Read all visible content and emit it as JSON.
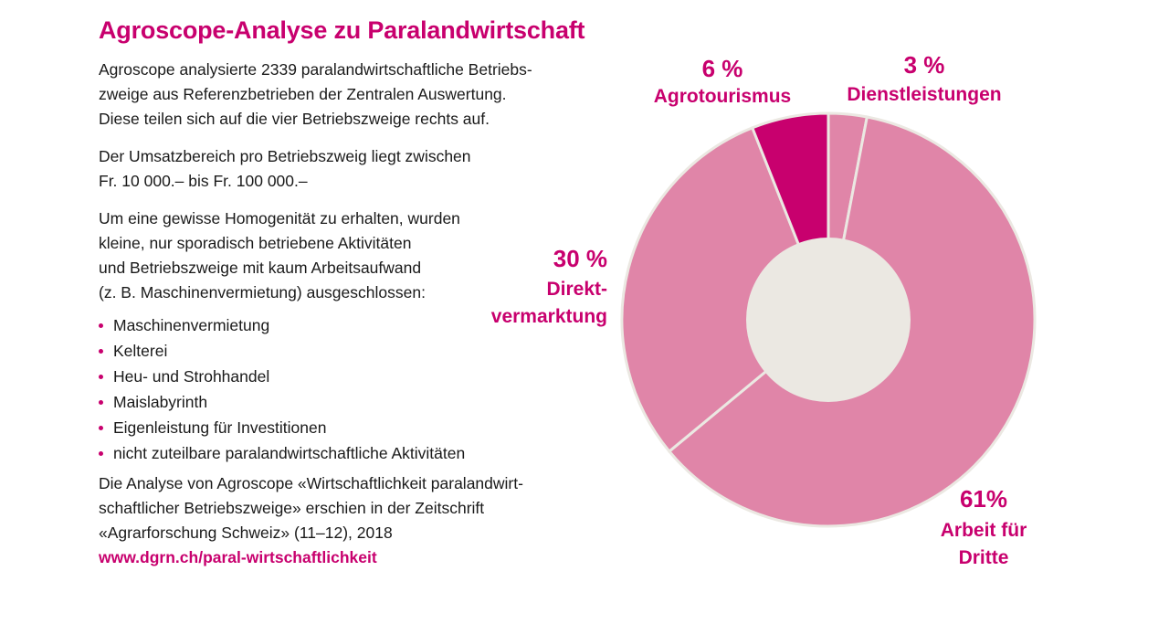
{
  "title": "Agroscope-Analyse zu Paralandwirtschaft",
  "intro_lines": [
    "Agroscope analysierte 2339 paralandwirtschaftliche Betriebs-",
    "zweige aus Referenzbetrieben der Zentralen Auswertung.",
    "Diese teilen sich auf die vier Betriebszweige rechts auf."
  ],
  "revenue_lines": [
    "Der Umsatzbereich pro Betriebszweig liegt zwischen",
    "Fr. 10 000.– bis Fr. 100 000.–"
  ],
  "homogeneity_lines": [
    "Um eine gewisse Homogenität zu erhalten, wurden",
    "kleine, nur sporadisch betriebene Aktivitäten",
    "und Betriebszweige mit kaum Arbeitsaufwand",
    "(z. B. Maschinenvermietung) ausgeschlossen:"
  ],
  "excluded": [
    "Maschinenvermietung",
    "Kelterei",
    "Heu- und Strohhandel",
    "Maislabyrinth",
    "Eigenleistung für Investitionen",
    "nicht zuteilbare paralandwirtschaftliche Aktivitäten"
  ],
  "source_lines": [
    "Die Analyse von Agroscope «Wirtschaftlichkeit paralandwirt-",
    "schaftlicher Betriebszweige» erschien in der Zeitschrift",
    "«Agrarforschung Schweiz» (11–12), 2018"
  ],
  "link_text": "www.dgrn.ch/paral-wirtschaftlichkeit",
  "colors": {
    "accent": "#c8006e",
    "slice_light": "#e085a8",
    "slice_dark": "#c8006e",
    "center": "#ebe8e2",
    "separator": "#ebe8e2"
  },
  "chart_data": {
    "type": "pie",
    "variant": "donut",
    "start": "top, clockwise",
    "slices": [
      {
        "label_lines": [
          "Dienstleistungen"
        ],
        "value": 3,
        "value_label": "3 %",
        "color": "#e085a8"
      },
      {
        "label_lines": [
          "Arbeit für",
          "Dritte"
        ],
        "value": 61,
        "value_label": "61%",
        "color": "#e085a8"
      },
      {
        "label_lines": [
          "Direkt-",
          "vermarktung"
        ],
        "value": 30,
        "value_label": "30 %",
        "color": "#e085a8"
      },
      {
        "label_lines": [
          "Agrotourismus"
        ],
        "value": 6,
        "value_label": "6 %",
        "color": "#c8006e"
      }
    ]
  }
}
